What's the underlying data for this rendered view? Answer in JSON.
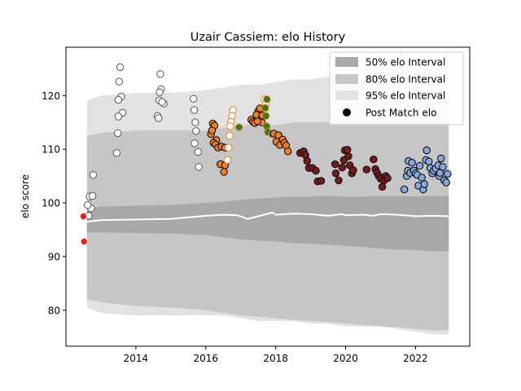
{
  "chart_data": {
    "type": "scatter",
    "title": "Uzair Cassiem: elo History",
    "ylabel": "elo score",
    "xlabel": "",
    "xlim": [
      2012.0,
      2023.55
    ],
    "ylim": [
      73.3,
      129.0
    ],
    "xticks": [
      2014,
      2016,
      2018,
      2020,
      2022
    ],
    "yticks": [
      80,
      90,
      100,
      110,
      120
    ],
    "grid": false,
    "legend_position": "top-right",
    "legend": [
      {
        "label": "50% elo Interval",
        "color": "#a8a8a8"
      },
      {
        "label": "80% elo Interval",
        "color": "#c6c6c6"
      },
      {
        "label": "95% elo Interval",
        "color": "#e2e2e2"
      },
      {
        "label": "Post Match elo",
        "color": "#000000"
      }
    ],
    "bands": {
      "x": [
        2012.6,
        2013.0,
        2014.0,
        2015.0,
        2016.0,
        2016.5,
        2017.0,
        2017.5,
        2018.0,
        2018.5,
        2019.0,
        2019.5,
        2020.0,
        2020.5,
        2021.0,
        2021.5,
        2022.0,
        2022.5,
        2022.95
      ],
      "p95_hi": [
        119.0,
        120.0,
        120.5,
        120.5,
        121.0,
        121.5,
        122.0,
        122.0,
        122.5,
        123.0,
        123.0,
        123.5,
        123.0,
        123.0,
        124.0,
        124.5,
        124.0,
        124.5,
        124.5
      ],
      "p80_hi": [
        112.5,
        113.0,
        113.5,
        113.5,
        113.5,
        114.0,
        114.5,
        114.5,
        114.5,
        115.0,
        115.0,
        115.0,
        115.0,
        115.0,
        115.5,
        115.5,
        115.5,
        115.5,
        115.5
      ],
      "p50_hi": [
        99.0,
        99.3,
        99.5,
        99.6,
        100.0,
        100.2,
        100.6,
        100.8,
        101.0,
        101.2,
        101.2,
        101.3,
        101.2,
        101.2,
        101.3,
        101.3,
        101.2,
        101.3,
        101.3
      ],
      "p50_lo": [
        94.5,
        94.5,
        94.4,
        94.3,
        94.0,
        93.6,
        93.2,
        93.0,
        92.8,
        92.5,
        92.4,
        92.2,
        92.0,
        91.8,
        91.5,
        91.3,
        91.2,
        91.0,
        91.0
      ],
      "p80_lo": [
        82.0,
        81.5,
        80.8,
        80.5,
        80.0,
        79.5,
        79.0,
        78.8,
        78.5,
        78.2,
        78.0,
        77.8,
        77.5,
        77.2,
        77.0,
        76.8,
        76.5,
        76.3,
        76.3
      ],
      "p95_lo": [
        80.5,
        79.5,
        79.0,
        79.0,
        79.0,
        79.0,
        78.5,
        78.0,
        78.0,
        78.0,
        77.5,
        77.5,
        77.0,
        77.0,
        77.0,
        76.5,
        76.0,
        75.5,
        75.5
      ]
    },
    "median_line": {
      "name": "median",
      "x": [
        2012.6,
        2013.0,
        2014.0,
        2015.0,
        2015.5,
        2016.0,
        2016.5,
        2016.9,
        2017.2,
        2017.5,
        2017.9,
        2018.0,
        2018.5,
        2019.0,
        2019.5,
        2019.9,
        2020.0,
        2020.5,
        2020.8,
        2021.0,
        2021.5,
        2022.0,
        2022.5,
        2022.95
      ],
      "y": [
        96.5,
        96.8,
        96.9,
        97.0,
        97.3,
        97.6,
        97.8,
        97.7,
        97.0,
        97.5,
        98.2,
        97.8,
        98.0,
        97.9,
        97.6,
        97.9,
        97.7,
        97.8,
        97.6,
        97.9,
        97.8,
        97.5,
        97.6,
        97.5
      ]
    },
    "series": [
      {
        "color": "#ffffff",
        "edge": "#555555",
        "points": [
          [
            2012.68,
            101.2
          ],
          [
            2012.72,
            99.0
          ],
          [
            2012.62,
            99.6
          ],
          [
            2012.78,
            105.2
          ],
          [
            2012.76,
            101.3
          ],
          [
            2012.65,
            97.6
          ],
          [
            2013.55,
            125.3
          ],
          [
            2013.52,
            122.6
          ],
          [
            2013.58,
            119.8
          ],
          [
            2013.5,
            119.2
          ],
          [
            2013.62,
            116.8
          ],
          [
            2013.5,
            116.1
          ],
          [
            2013.48,
            113.0
          ],
          [
            2013.45,
            109.3
          ],
          [
            2014.7,
            124.0
          ],
          [
            2014.72,
            121.2
          ],
          [
            2014.68,
            120.6
          ],
          [
            2014.67,
            119.1
          ],
          [
            2014.8,
            118.5
          ],
          [
            2014.62,
            116.2
          ],
          [
            2014.65,
            115.8
          ],
          [
            2014.75,
            118.8
          ],
          [
            2015.65,
            119.4
          ],
          [
            2015.67,
            117.3
          ],
          [
            2015.7,
            115.0
          ],
          [
            2015.72,
            113.4
          ],
          [
            2015.68,
            111.1
          ],
          [
            2015.78,
            109.5
          ],
          [
            2015.8,
            106.7
          ]
        ]
      },
      {
        "color": "#ee8122",
        "edge": "#000000",
        "points": [
          [
            2016.15,
            112.8
          ],
          [
            2016.2,
            114.8
          ],
          [
            2016.25,
            114.4
          ],
          [
            2016.18,
            113.5
          ],
          [
            2016.3,
            111.7
          ],
          [
            2016.22,
            111.2
          ],
          [
            2016.28,
            110.9
          ],
          [
            2016.35,
            110.3
          ],
          [
            2016.45,
            110.5
          ],
          [
            2016.55,
            110.3
          ],
          [
            2016.42,
            107.2
          ],
          [
            2016.55,
            107.0
          ],
          [
            2016.52,
            105.8
          ],
          [
            2017.3,
            115.5
          ],
          [
            2017.35,
            115.1
          ],
          [
            2017.4,
            114.9
          ],
          [
            2017.5,
            117.1
          ],
          [
            2017.55,
            117.6
          ],
          [
            2017.45,
            116.4
          ],
          [
            2017.58,
            115.6
          ],
          [
            2017.6,
            115.0
          ],
          [
            2017.62,
            116.3
          ],
          [
            2017.48,
            115.2
          ]
        ]
      },
      {
        "color": "#ffffff",
        "edge": "#ee8122",
        "points": [
          [
            2016.78,
            117.3
          ],
          [
            2016.75,
            116.2
          ],
          [
            2016.72,
            115.1
          ],
          [
            2016.7,
            114.3
          ],
          [
            2016.68,
            112.5
          ],
          [
            2016.65,
            110.3
          ],
          [
            2016.62,
            108.0
          ],
          [
            2017.68,
            119.3
          ],
          [
            2017.72,
            118.5
          ]
        ]
      },
      {
        "color": "#2e7d1a",
        "edge": "#ee8122",
        "points": [
          [
            2016.95,
            114.1
          ],
          [
            2017.75,
            119.3
          ],
          [
            2017.7,
            117.7
          ],
          [
            2017.72,
            116.2
          ],
          [
            2017.74,
            114.3
          ],
          [
            2017.78,
            113.2
          ],
          [
            2017.9,
            112.8
          ]
        ]
      },
      {
        "color": "#ee8122",
        "edge": "#000000",
        "points": [
          [
            2017.95,
            112.9
          ],
          [
            2018.02,
            111.4
          ],
          [
            2018.08,
            112.6
          ],
          [
            2018.12,
            110.8
          ],
          [
            2018.2,
            111.8
          ],
          [
            2018.25,
            111.2
          ],
          [
            2018.3,
            110.7
          ],
          [
            2018.35,
            109.6
          ]
        ]
      },
      {
        "color": "#7a1a1a",
        "edge": "#000000",
        "points": [
          [
            2018.7,
            109.3
          ],
          [
            2018.8,
            109.6
          ],
          [
            2018.85,
            108.9
          ],
          [
            2018.9,
            107.8
          ],
          [
            2018.95,
            106.5
          ],
          [
            2019.05,
            106.5
          ],
          [
            2019.15,
            106.0
          ],
          [
            2019.2,
            104.0
          ],
          [
            2019.3,
            104.1
          ],
          [
            2019.7,
            107.2
          ],
          [
            2019.72,
            105.5
          ],
          [
            2019.8,
            104.2
          ],
          [
            2019.9,
            106.6
          ],
          [
            2019.95,
            108.0
          ],
          [
            2019.98,
            109.8
          ],
          [
            2020.05,
            109.9
          ],
          [
            2020.08,
            108.7
          ],
          [
            2020.12,
            107.0
          ],
          [
            2020.18,
            105.5
          ],
          [
            2020.22,
            106.1
          ],
          [
            2020.6,
            106.2
          ],
          [
            2020.8,
            108.1
          ],
          [
            2020.85,
            106.3
          ],
          [
            2020.9,
            105.6
          ],
          [
            2020.95,
            105.0
          ],
          [
            2021.0,
            104.5
          ],
          [
            2021.05,
            103.0
          ],
          [
            2021.1,
            104.2
          ],
          [
            2021.15,
            105.0
          ],
          [
            2021.2,
            104.6
          ]
        ]
      },
      {
        "color": "#85a9dd",
        "edge": "#000000",
        "points": [
          [
            2021.68,
            102.5
          ],
          [
            2021.75,
            105.0
          ],
          [
            2021.78,
            106.0
          ],
          [
            2021.8,
            107.8
          ],
          [
            2021.85,
            105.6
          ],
          [
            2021.9,
            107.5
          ],
          [
            2021.95,
            106.0
          ],
          [
            2022.0,
            105.5
          ],
          [
            2022.05,
            105.2
          ],
          [
            2022.08,
            103.2
          ],
          [
            2022.12,
            106.9
          ],
          [
            2022.18,
            104.7
          ],
          [
            2022.22,
            102.5
          ],
          [
            2022.25,
            103.5
          ],
          [
            2022.3,
            108.0
          ],
          [
            2022.32,
            109.8
          ],
          [
            2022.38,
            107.7
          ],
          [
            2022.42,
            106.5
          ],
          [
            2022.48,
            105.5
          ],
          [
            2022.52,
            106.0
          ],
          [
            2022.58,
            106.4
          ],
          [
            2022.65,
            107.0
          ],
          [
            2022.68,
            105.0
          ],
          [
            2022.7,
            105.6
          ],
          [
            2022.73,
            108.3
          ],
          [
            2022.78,
            106.7
          ],
          [
            2022.82,
            104.2
          ],
          [
            2022.88,
            103.8
          ],
          [
            2022.92,
            105.4
          ]
        ]
      },
      {
        "color": "#e8201a",
        "edge": "#ffffff",
        "points": [
          [
            2012.5,
            97.5
          ],
          [
            2012.52,
            92.8
          ]
        ]
      }
    ]
  }
}
